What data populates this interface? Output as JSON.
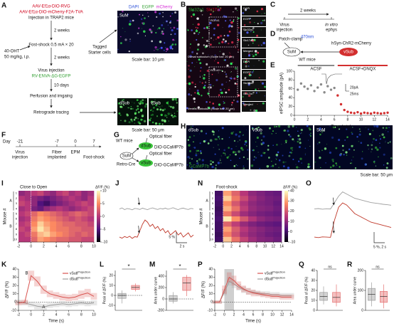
{
  "panel_labels": [
    "A",
    "B",
    "C",
    "D",
    "E",
    "F",
    "G",
    "H",
    "I",
    "J",
    "K",
    "L",
    "M",
    "N",
    "O",
    "P",
    "Q",
    "R"
  ],
  "A": {
    "injection1": "AAV-Ef1α-DIO-RVG",
    "injection2": "AAV-Ef1α-DIO-mCherry-F2A-TVA",
    "injection_note": "Injection in TRAP2 mice",
    "wait1": "2 weeks",
    "shock": "Fost-shock 0.5 mA × 20",
    "drug1": "40-OHT",
    "drug2": "50 mg/kg, i.p.",
    "wait2": "2 weeks",
    "virus": "Virus injection",
    "rv": "RV-ENVA-ΔG-EGFP",
    "wait3": "10 days",
    "perfusion": "Perfusion and imgaing",
    "tracing": "Retrograde tracing",
    "tagged1": "Tagged",
    "tagged2": "Starter cells",
    "img_label": "SuM",
    "stain_dapi": "DAPI",
    "stain_egfp": "EGFP",
    "stain_mcherry": "mCherry",
    "scale1": "Scale bar: 10 μm",
    "dsub": "dSub",
    "vsub": "vSub",
    "scale2": "Scale bar: 50 μm"
  },
  "B": {
    "stain1": "Slc32a1",
    "stain2": "Slc17a7",
    "roi1": "ROI #1",
    "roi2": "ROI #2",
    "caption1": "Dorsal subiculum (Scale bar: 20 μm)",
    "caption2": "Ventral subiculum (Scale bar: 20 μm)",
    "channels": [
      "DAPI",
      "EGFP",
      "Slc32a1",
      "Slc17a7",
      "Merged"
    ]
  },
  "C": {
    "wait": "2 weeks",
    "step1a": "Virus",
    "step1b": "injection",
    "step2a": "in vitro",
    "step2b": "ephys"
  },
  "D": {
    "patch": "Patch-clamp",
    "light": "470nm",
    "virus": "hSyn-ChR2-mCherry",
    "source": "SuM",
    "target": "vSub",
    "mice": "WT mice"
  },
  "E": {
    "type": "scatter",
    "ylabel": "eIPSC amplitude (pA)",
    "xlabel": "Time (min)",
    "xlim": [
      0,
      14
    ],
    "xticks": [
      0,
      2,
      4,
      6,
      8,
      10,
      12,
      14
    ],
    "ylim": [
      0,
      100
    ],
    "yticks": [
      0,
      20,
      40,
      60,
      80,
      100
    ],
    "scale_amp": "20pA",
    "scale_time": "25ms",
    "series": [
      {
        "name": "ACSF",
        "color": "#8a8a8a",
        "x": [
          0.5,
          1,
          1.5,
          2,
          2.5,
          3,
          3.5,
          4,
          4.5,
          5,
          5.5,
          6
        ],
        "values": [
          58,
          72,
          65,
          60,
          68,
          55,
          63,
          70,
          52,
          66,
          58,
          62
        ]
      },
      {
        "name": "ACSF+DNQX",
        "color": "#d32f2f",
        "x": [
          6.5,
          7,
          7.5,
          8,
          8.5,
          9,
          9.5,
          10,
          10.5,
          11,
          11.5,
          12,
          12.5,
          13,
          13.5,
          14
        ],
        "values": [
          45,
          25,
          12,
          8,
          6,
          5,
          7,
          4,
          6,
          5,
          4,
          6,
          5,
          4,
          5,
          6
        ]
      }
    ]
  },
  "F": {
    "day": "Day",
    "ticks": [
      -21,
      -7,
      0,
      7
    ],
    "event1a": "Virus",
    "event1b": "injection",
    "event2a": "Fiber",
    "event2b": "implanted",
    "event3": "EPM",
    "event4": "Foot-shock"
  },
  "G": {
    "mice": "WT mice",
    "fiber1": "Optical fiber",
    "dsub": "dSub",
    "virus1": "DIO-GCaMP7b",
    "fiber2": "Optical fiber",
    "sum": "SuM",
    "cre": "Retro-Cre",
    "vsub": "vSub",
    "virus2": "DIO-GCaMP7b"
  },
  "H": {
    "images": [
      "dSub",
      "vSub",
      "SuM"
    ],
    "stain": "GCaMP7b",
    "scale": "Scale bar: 50 μm"
  },
  "I": {
    "type": "heatmap",
    "title": "Close to Open",
    "ylabel": "Mouse #",
    "groups": [
      "A",
      "B"
    ],
    "rows": [
      1,
      2,
      3,
      4,
      5,
      6,
      7,
      8,
      9,
      10
    ],
    "xlim": [
      -2,
      10
    ],
    "xticks": [
      -2,
      0,
      2,
      4,
      6,
      8,
      10
    ],
    "colormap": "magma",
    "clabel": "ΔF/F (%)",
    "clim": [
      -10,
      10
    ],
    "cticks": [
      10,
      5,
      0,
      -5,
      -10
    ],
    "matrix": [
      [
        -2,
        -1,
        0,
        1,
        -1,
        -2,
        0,
        1,
        -1,
        0,
        -2,
        -1
      ],
      [
        0,
        -1,
        -2,
        -3,
        -4,
        -3,
        -2,
        -1,
        0,
        -1,
        -2,
        0
      ],
      [
        1,
        0,
        -2,
        -5,
        -6,
        -4,
        -3,
        -2,
        -1,
        0,
        1,
        0
      ],
      [
        -1,
        0,
        -3,
        -4,
        -2,
        -1,
        0,
        -1,
        -2,
        -1,
        0,
        1
      ],
      [
        0,
        1,
        3,
        5,
        4,
        3,
        2,
        1,
        2,
        3,
        2,
        1
      ],
      [
        -1,
        0,
        4,
        6,
        5,
        4,
        3,
        2,
        1,
        2,
        1,
        0
      ],
      [
        0,
        1,
        5,
        8,
        6,
        5,
        4,
        3,
        3,
        2,
        2,
        1
      ],
      [
        1,
        0,
        6,
        9,
        7,
        5,
        4,
        4,
        3,
        3,
        2,
        2
      ],
      [
        0,
        1,
        4,
        7,
        8,
        6,
        5,
        4,
        3,
        2,
        3,
        2
      ],
      [
        0,
        0,
        3,
        6,
        5,
        4,
        3,
        3,
        2,
        2,
        1,
        1
      ]
    ]
  },
  "J": {
    "type": "trace",
    "scale_y": "5 %",
    "scale_x": "2 s",
    "series": [
      {
        "color": "#9e9e9e",
        "values": [
          0,
          0.5,
          -0.3,
          0.2,
          0,
          -0.4,
          0.3,
          0.1,
          -0.2,
          0.4,
          0,
          -0.3,
          0.2,
          0.5,
          0.1,
          -0.2,
          0.3,
          0,
          0.4,
          -0.1,
          0.2,
          0.6,
          0.1,
          -0.3,
          0.2,
          0.4,
          0,
          -0.2,
          0.3,
          0.1
        ]
      },
      {
        "color": "#c0392b",
        "values": [
          0,
          -0.5,
          0.3,
          -0.2,
          0.4,
          -0.6,
          0.2,
          0,
          3,
          6,
          8,
          7,
          5,
          6,
          4,
          5,
          3,
          4,
          2,
          3,
          1,
          2,
          3,
          1,
          2,
          0,
          1,
          2,
          0,
          1
        ]
      }
    ]
  },
  "K": {
    "type": "line",
    "ylabel": "ΔF/F (%)",
    "xlabel": "Time (s)",
    "xlim": [
      -2,
      10
    ],
    "xticks": [
      -2,
      0,
      2,
      4,
      6,
      8,
      10
    ],
    "ylim": [
      -10,
      40
    ],
    "yticks": [
      -10,
      0,
      10,
      20,
      30,
      40
    ],
    "annotations": [
      "B",
      "A"
    ],
    "series": [
      {
        "name": "vSub",
        "name_sup": "Projection",
        "color": "#d9534f",
        "x": [
          -2,
          -1,
          0,
          1,
          2,
          3,
          4,
          5,
          6,
          7,
          8,
          9,
          10
        ],
        "values": [
          -1,
          0,
          32,
          25,
          15,
          10,
          8,
          6,
          5,
          6,
          9,
          11,
          7
        ],
        "error": [
          3,
          3,
          6,
          6,
          5,
          4,
          4,
          4,
          4,
          4,
          5,
          5,
          4
        ]
      },
      {
        "name": "dSub",
        "name_sup": "Projection",
        "color": "#9e9e9e",
        "x": [
          -2,
          -1,
          0,
          1,
          2,
          3,
          4,
          5,
          6,
          7,
          8,
          9,
          10
        ],
        "values": [
          0,
          -1,
          -3,
          -5,
          -6,
          -4,
          -3,
          -2,
          -3,
          -2,
          -1,
          -2,
          -1
        ],
        "error": [
          3,
          3,
          3,
          4,
          4,
          3,
          3,
          3,
          3,
          3,
          3,
          3,
          3
        ]
      }
    ]
  },
  "L": {
    "type": "box",
    "ylabel": "Peak of ΔF/F (%)",
    "ylim": [
      -15,
      25
    ],
    "yticks": [
      -10,
      0,
      10,
      20
    ],
    "significance": "*",
    "boxes": [
      {
        "color": "#9e9e9e",
        "min": -8,
        "q1": -3,
        "median": 0,
        "q3": 2,
        "max": 5
      },
      {
        "color": "#e57373",
        "min": 4,
        "q1": 6,
        "median": 8,
        "q3": 10,
        "max": 12
      }
    ]
  },
  "M": {
    "type": "box",
    "ylabel": "Area under curve",
    "ylim": [
      -200,
      500
    ],
    "yticks": [
      -200,
      0,
      200,
      400
    ],
    "significance": "*",
    "boxes": [
      {
        "color": "#9e9e9e",
        "min": -80,
        "q1": -40,
        "median": 0,
        "q3": 60,
        "max": 120
      },
      {
        "color": "#e57373",
        "min": 50,
        "q1": 150,
        "median": 280,
        "q3": 380,
        "max": 420
      }
    ]
  },
  "N": {
    "type": "heatmap",
    "title": "Foot-shock",
    "ylabel": "Mouse #",
    "groups": [
      "A",
      "B"
    ],
    "rows": [
      1,
      2,
      3,
      4,
      5,
      6,
      7,
      8,
      9,
      10
    ],
    "xlim": [
      -2,
      14
    ],
    "xticks": [
      -2,
      0,
      2,
      4,
      6,
      8,
      10,
      12,
      14
    ],
    "colormap": "magma",
    "clabel": "ΔF/F (%)",
    "clim": [
      -10,
      40
    ],
    "cticks": [
      40,
      30,
      20,
      10,
      0,
      -10
    ],
    "matrix": [
      [
        0,
        30,
        22,
        15,
        10,
        8,
        6,
        5
      ],
      [
        1,
        35,
        25,
        18,
        12,
        9,
        7,
        6
      ],
      [
        0,
        28,
        20,
        14,
        10,
        8,
        7,
        5
      ],
      [
        -1,
        32,
        24,
        16,
        11,
        9,
        8,
        6
      ],
      [
        0,
        25,
        18,
        12,
        9,
        7,
        6,
        5
      ],
      [
        1,
        38,
        28,
        20,
        14,
        10,
        8,
        7
      ],
      [
        0,
        22,
        16,
        11,
        8,
        6,
        5,
        4
      ],
      [
        0,
        30,
        21,
        15,
        11,
        9,
        7,
        6
      ],
      [
        -1,
        26,
        19,
        13,
        10,
        8,
        6,
        5
      ],
      [
        0,
        34,
        24,
        17,
        12,
        9,
        8,
        6
      ]
    ]
  },
  "O": {
    "type": "trace",
    "scale": "5 %, 2 s",
    "series": [
      {
        "color": "#9e9e9e",
        "values": [
          0,
          0.2,
          -0.1,
          0.1,
          0,
          3,
          6,
          8,
          7,
          6,
          5,
          4.5,
          4,
          3.5,
          3,
          2.8,
          2.5,
          2.2,
          2,
          1.8
        ]
      },
      {
        "color": "#c0392b",
        "values": [
          0,
          -0.2,
          0.1,
          0,
          -0.1,
          8,
          14,
          16,
          15,
          13,
          11,
          10,
          9,
          8,
          7,
          6.5,
          6,
          5.5,
          5,
          4.5
        ]
      }
    ]
  },
  "P": {
    "type": "line",
    "ylabel": "ΔF/F (%)",
    "xlabel": "Time (s)",
    "xlim": [
      -2,
      14
    ],
    "xticks": [
      -2,
      0,
      2,
      4,
      6,
      8,
      10,
      12,
      14
    ],
    "ylim": [
      -10,
      40
    ],
    "yticks": [
      -10,
      0,
      10,
      20,
      30,
      40
    ],
    "shade": [
      0,
      2
    ],
    "series": [
      {
        "name": "vSub",
        "name_sup": "Projection",
        "color": "#d9534f",
        "x": [
          -2,
          -1,
          0,
          1,
          2,
          3,
          4,
          5,
          6,
          7,
          8,
          9,
          10,
          11,
          12,
          13,
          14
        ],
        "values": [
          0,
          0,
          15,
          30,
          26,
          20,
          16,
          13,
          11,
          10,
          9,
          8,
          7,
          7,
          6,
          6,
          6
        ],
        "error": [
          2,
          2,
          5,
          6,
          6,
          5,
          4,
          4,
          4,
          3,
          3,
          3,
          3,
          3,
          3,
          3,
          3
        ]
      },
      {
        "name": "dSub",
        "name_sup": "Projection",
        "color": "#9e9e9e",
        "x": [
          -2,
          -1,
          0,
          1,
          2,
          3,
          4,
          5,
          6,
          7,
          8,
          9,
          10,
          11,
          12,
          13,
          14
        ],
        "values": [
          0,
          0,
          12,
          25,
          22,
          18,
          15,
          13,
          12,
          11,
          10,
          10,
          9,
          9,
          8,
          8,
          8
        ],
        "error": [
          2,
          2,
          4,
          5,
          5,
          4,
          4,
          4,
          3,
          3,
          3,
          3,
          3,
          3,
          3,
          3,
          3
        ]
      }
    ]
  },
  "Q": {
    "type": "box",
    "ylabel": "Peak of ΔF/F (%)",
    "ylim": [
      0,
      40
    ],
    "yticks": [
      0,
      10,
      20,
      30,
      40
    ],
    "significance": "ns",
    "boxes": [
      {
        "color": "#9e9e9e",
        "min": 6,
        "q1": 10,
        "median": 14,
        "q3": 18,
        "max": 24
      },
      {
        "color": "#e57373",
        "min": 4,
        "q1": 8,
        "median": 13,
        "q3": 18,
        "max": 26
      }
    ]
  },
  "R": {
    "type": "box",
    "ylabel": "Area under curve",
    "ylim": [
      0,
      200
    ],
    "yticks": [
      0,
      100,
      200
    ],
    "significance": "ns",
    "boxes": [
      {
        "color": "#9e9e9e",
        "min": 20,
        "q1": 50,
        "median": 80,
        "q3": 110,
        "max": 140
      },
      {
        "color": "#e57373",
        "min": 10,
        "q1": 40,
        "median": 70,
        "q3": 95,
        "max": 130
      }
    ]
  }
}
